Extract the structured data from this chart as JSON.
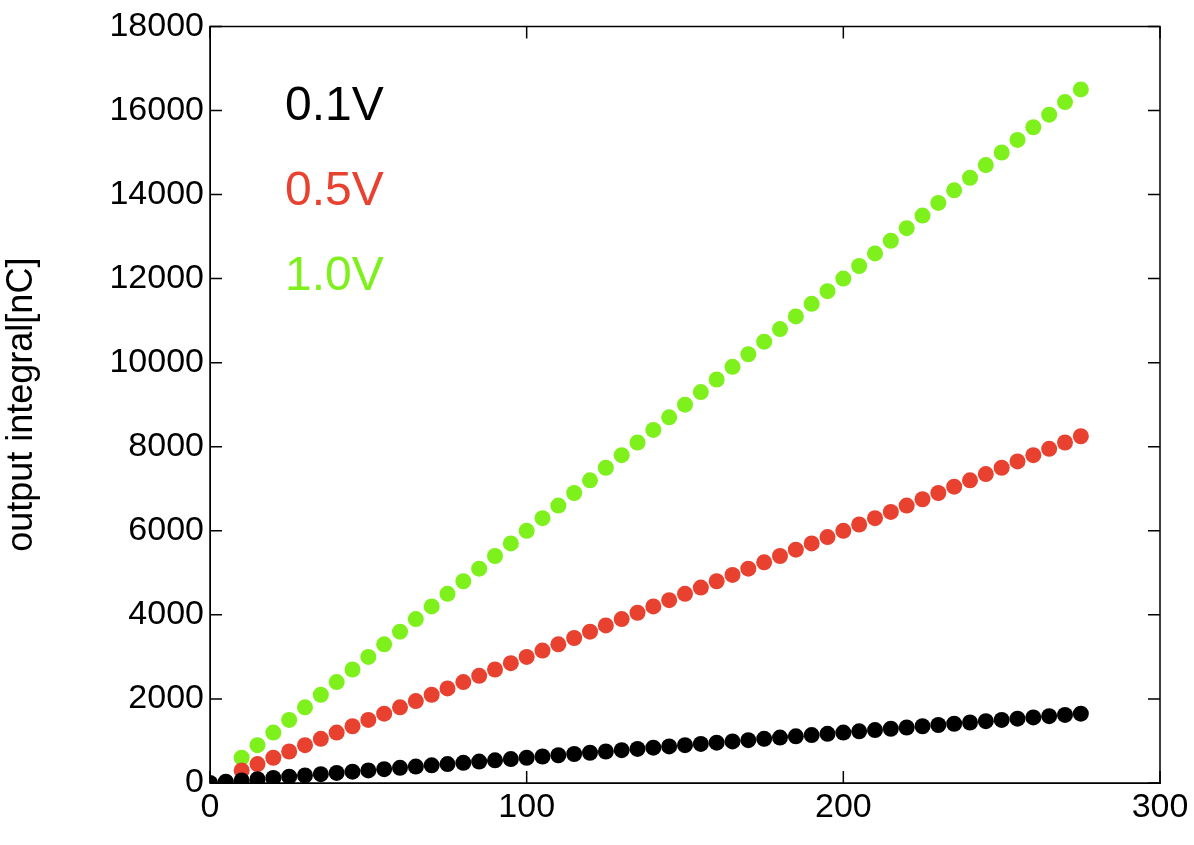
{
  "chart_data": {
    "type": "scatter",
    "ylabel": "output integral[nC]",
    "xlim": [
      0,
      300
    ],
    "xticks": [
      0,
      100,
      200,
      300
    ],
    "ylim": [
      0,
      18000
    ],
    "yticks": [
      0,
      2000,
      4000,
      6000,
      8000,
      10000,
      12000,
      14000,
      16000,
      18000
    ],
    "grid": false,
    "legend": "top left",
    "marker": "circle",
    "x": [
      0,
      5,
      10,
      15,
      20,
      25,
      30,
      35,
      40,
      45,
      50,
      55,
      60,
      65,
      70,
      75,
      80,
      85,
      90,
      95,
      100,
      105,
      110,
      115,
      120,
      125,
      130,
      135,
      140,
      145,
      150,
      155,
      160,
      165,
      170,
      175,
      180,
      185,
      190,
      195,
      200,
      205,
      210,
      215,
      220,
      225,
      230,
      235,
      240,
      245,
      250,
      255,
      260,
      265,
      270,
      275
    ],
    "series": [
      {
        "name": "0.1V",
        "color": "#000000",
        "values": [
          0,
          30,
          60,
          90,
          120,
          150,
          180,
          210,
          240,
          270,
          300,
          330,
          360,
          390,
          420,
          450,
          480,
          510,
          540,
          570,
          600,
          630,
          660,
          690,
          720,
          750,
          780,
          810,
          840,
          870,
          900,
          930,
          960,
          990,
          1020,
          1050,
          1080,
          1110,
          1140,
          1170,
          1200,
          1230,
          1260,
          1290,
          1320,
          1350,
          1380,
          1410,
          1440,
          1470,
          1500,
          1530,
          1560,
          1590,
          1620,
          1650
        ]
      },
      {
        "name": "0.5V",
        "color": "#e8412f",
        "values": [
          null,
          null,
          300,
          450,
          600,
          750,
          900,
          1050,
          1200,
          1350,
          1500,
          1650,
          1800,
          1950,
          2100,
          2250,
          2400,
          2550,
          2700,
          2850,
          3000,
          3150,
          3300,
          3450,
          3600,
          3750,
          3900,
          4050,
          4200,
          4350,
          4500,
          4650,
          4800,
          4950,
          5100,
          5250,
          5400,
          5550,
          5700,
          5850,
          6000,
          6150,
          6300,
          6450,
          6600,
          6750,
          6900,
          7050,
          7200,
          7350,
          7500,
          7650,
          7800,
          7950,
          8100,
          8250
        ]
      },
      {
        "name": "1.0V",
        "color": "#7ef01c",
        "values": [
          null,
          null,
          600,
          900,
          1200,
          1500,
          1800,
          2100,
          2400,
          2700,
          3000,
          3300,
          3600,
          3900,
          4200,
          4500,
          4800,
          5100,
          5400,
          5700,
          6000,
          6300,
          6600,
          6900,
          7200,
          7500,
          7800,
          8100,
          8400,
          8700,
          9000,
          9300,
          9600,
          9900,
          10200,
          10500,
          10800,
          11100,
          11400,
          11700,
          12000,
          12300,
          12600,
          12900,
          13200,
          13500,
          13800,
          14100,
          14400,
          14700,
          15000,
          15300,
          15600,
          15900,
          16200,
          16500
        ]
      }
    ]
  }
}
